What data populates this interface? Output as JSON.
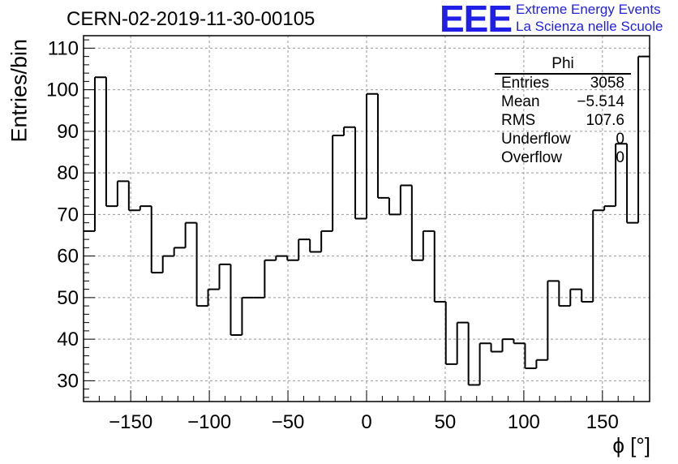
{
  "header": {
    "title": "CERN-02-2019-11-30-00105",
    "logo_text": "EEE",
    "logo_line1": "Extreme Energy Events",
    "logo_line2": "La Scienza nelle Scuole"
  },
  "stats_box": {
    "title": "Phi",
    "rows": [
      {
        "label": "Entries",
        "value": "3058"
      },
      {
        "label": "Mean",
        "value": "−5.514"
      },
      {
        "label": "RMS",
        "value": "107.6"
      },
      {
        "label": "Underflow",
        "value": "0"
      },
      {
        "label": "Overflow",
        "value": "0"
      }
    ]
  },
  "colors": {
    "line": "#000000",
    "grid": "#999999",
    "logo": "#1f1fe8"
  },
  "chart_data": {
    "type": "histogram",
    "title": "CERN-02-2019-11-30-00105",
    "xlabel": "ϕ [°]",
    "ylabel": "Entries/bin",
    "xlim": [
      -180,
      180
    ],
    "ylim": [
      25,
      113
    ],
    "bin_width": 7.2,
    "x_ticks": [
      -150,
      -100,
      -50,
      0,
      50,
      100,
      150
    ],
    "x_tick_labels": [
      "−150",
      "−100",
      "−50",
      "0",
      "50",
      "100",
      "150"
    ],
    "y_ticks": [
      30,
      40,
      50,
      60,
      70,
      80,
      90,
      100,
      110
    ],
    "y_tick_labels": [
      "30",
      "40",
      "50",
      "60",
      "70",
      "80",
      "90",
      "100",
      "110"
    ],
    "grid": true,
    "values": [
      66,
      103,
      72,
      78,
      71,
      72,
      56,
      60,
      62,
      68,
      48,
      52,
      58,
      41,
      50,
      50,
      59,
      60,
      59,
      64,
      61,
      66,
      89,
      91,
      69,
      99,
      74,
      70,
      77,
      59,
      66,
      49,
      34,
      44,
      29,
      39,
      37,
      40,
      39,
      33,
      35,
      54,
      48,
      52,
      49,
      71,
      72,
      87,
      68,
      108
    ]
  }
}
